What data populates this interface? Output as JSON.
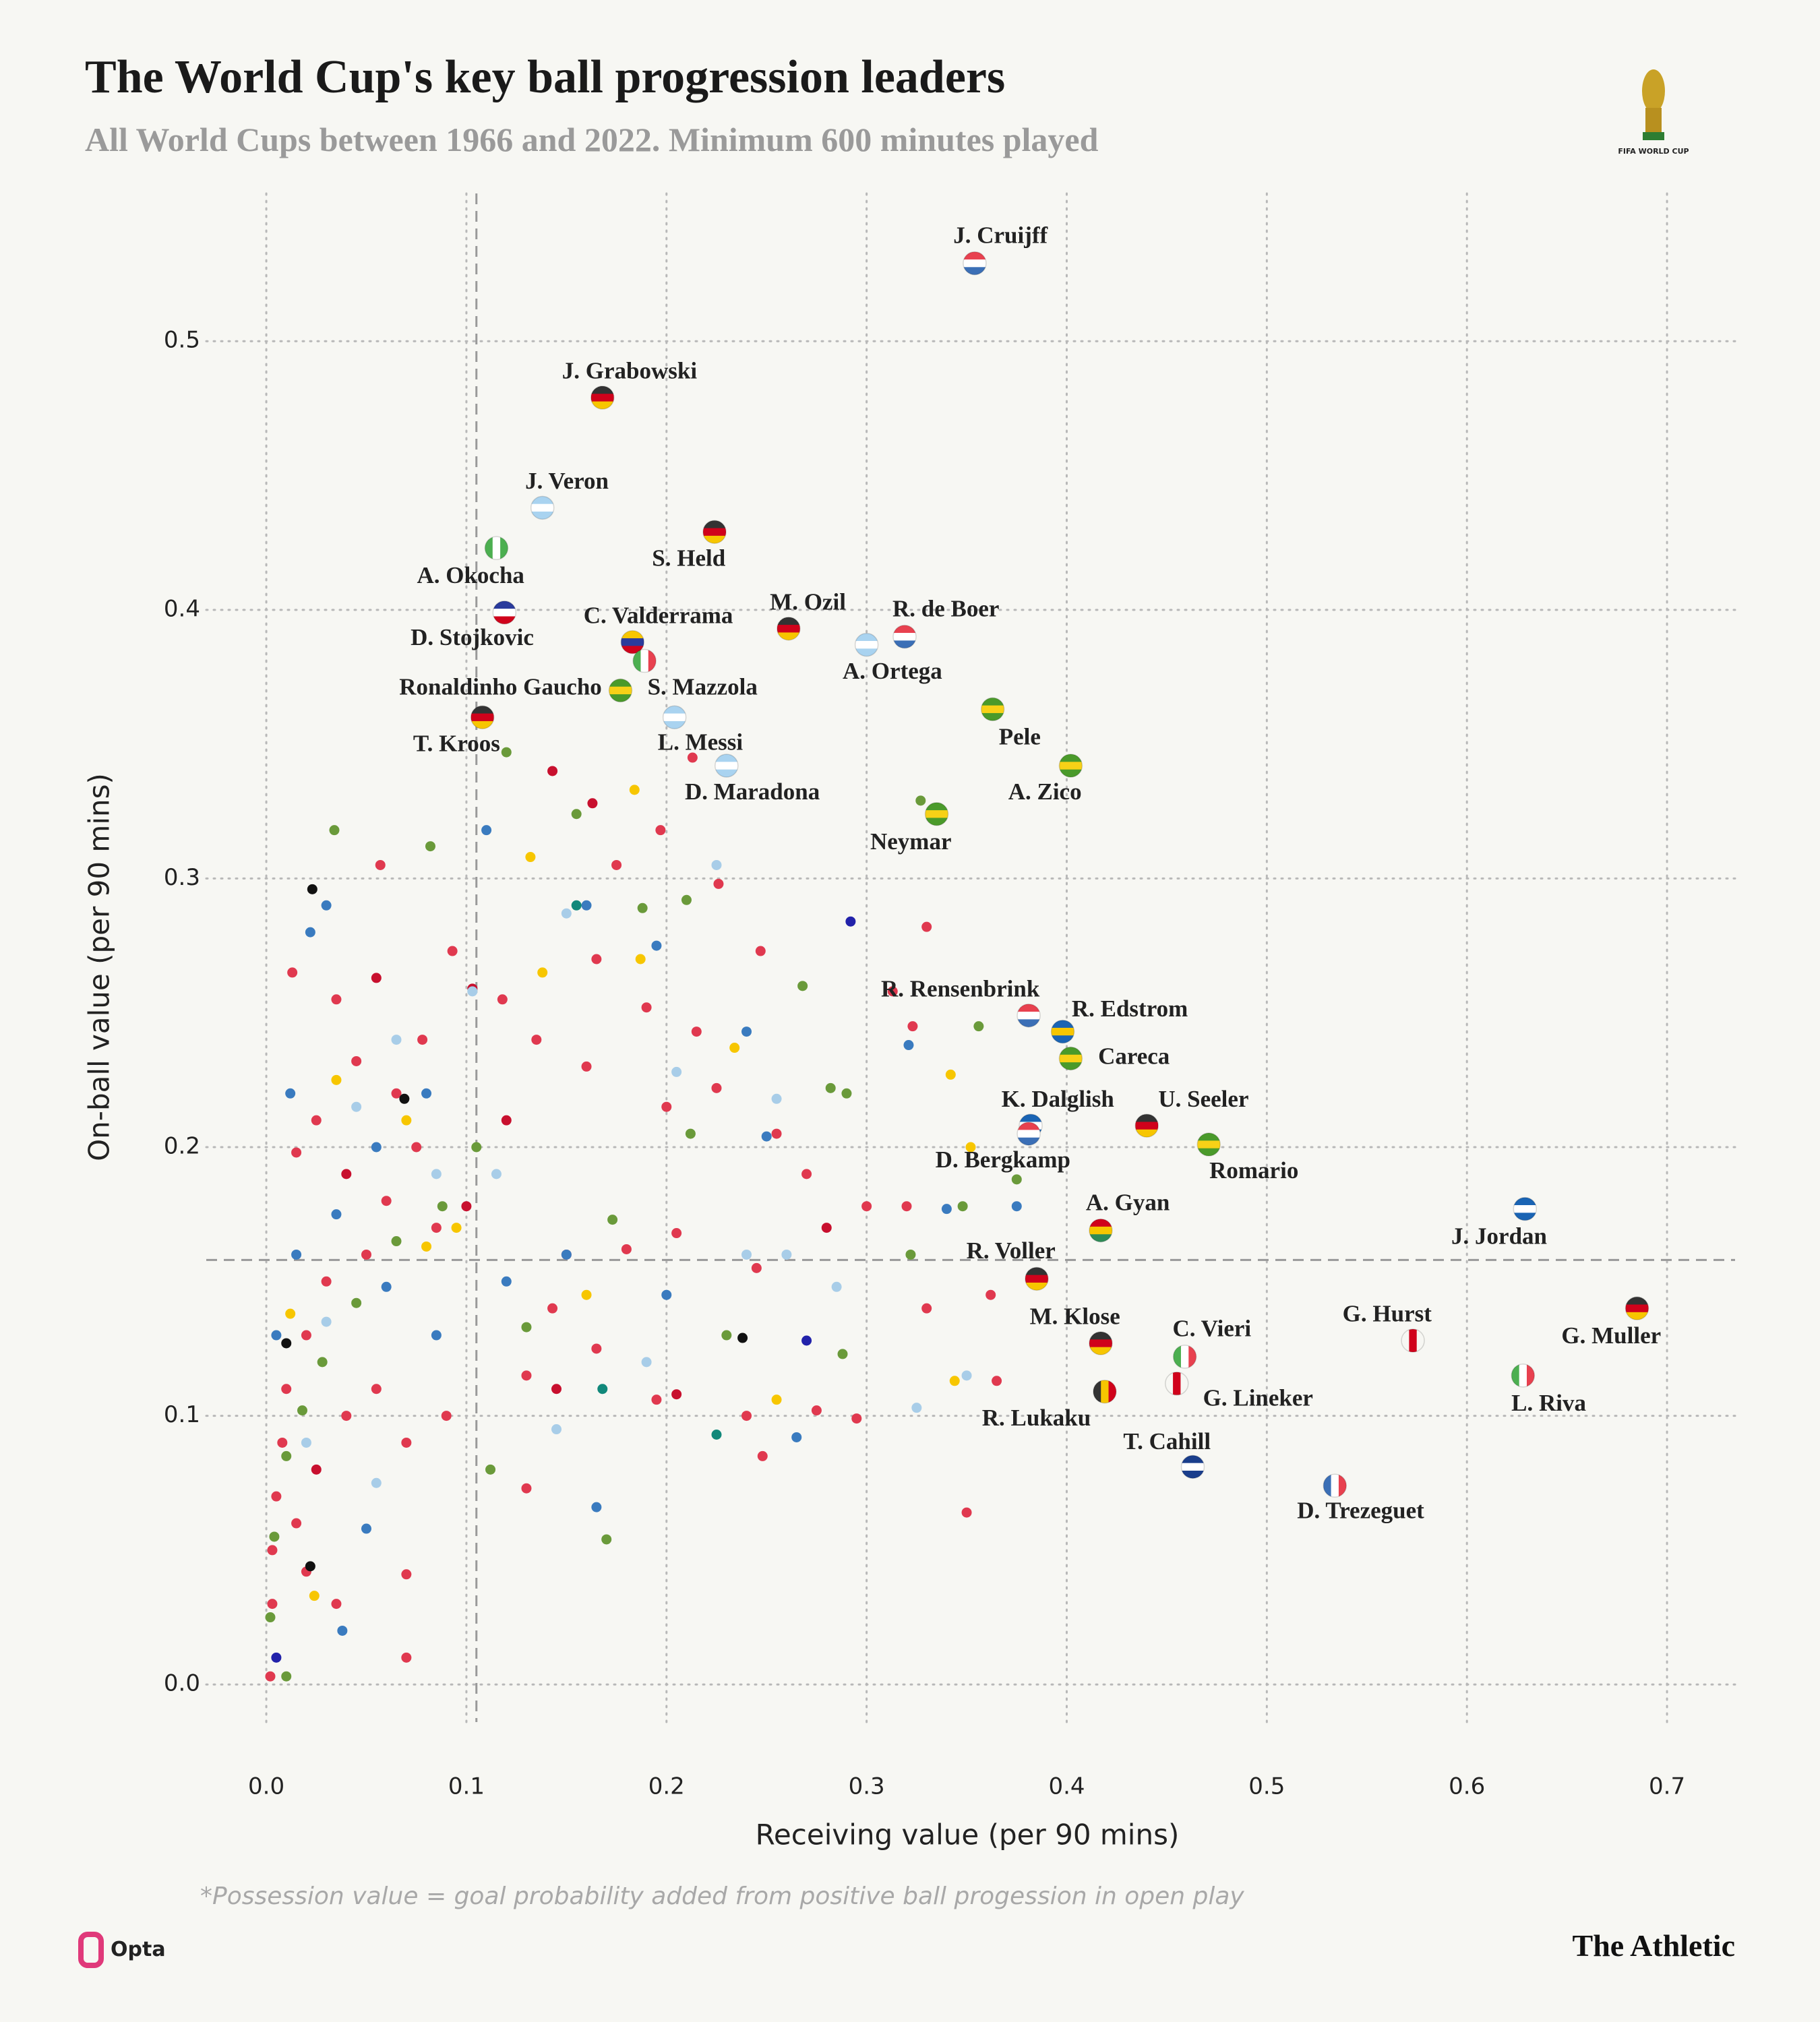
{
  "chart_data": {
    "type": "scatter",
    "title": "The World Cup's key ball progression leaders",
    "subtitle": "All World Cups between 1966 and 2022. Minimum 600 minutes played",
    "x_label": "Receiving value (per 90 mins)",
    "y_label": "On-ball value (per 90 mins)",
    "footnote": "*Possession value = goal probability added from positive ball progession in open play",
    "source": "Opta",
    "publisher": "The Athletic",
    "logo_text": "FIFA WORLD CUP",
    "xlim": [
      -0.03,
      0.734
    ],
    "ylim": [
      -0.014,
      0.555
    ],
    "xticks": [
      {
        "value": 0,
        "label": "0.0"
      },
      0.1,
      0.2,
      0.3,
      0.4,
      0.5,
      0.6,
      0.7
    ],
    "yticks": [
      {
        "value": 0,
        "label": "0.0"
      },
      0.1,
      0.2,
      0.3,
      0.4,
      0.5
    ],
    "grid": true,
    "reference_lines": {
      "x": 0.105,
      "y": 0.158
    },
    "labeled": {
      "names": [
        "J. Cruijff",
        "J. Grabowski",
        "J. Veron",
        "S. Held",
        "A. Okocha",
        "D. Stojkovic",
        "C. Valderrama",
        "S. Mazzola",
        "M. Ozil",
        "R. de Boer",
        "A. Ortega",
        "Ronaldinho Gaucho",
        "L. Messi",
        "T. Kroos",
        "Pele",
        "D. Maradona",
        "A. Zico",
        "Neymar",
        "R. Rensenbrink",
        "R. Edstrom",
        "Careca",
        "K. Dalglish",
        "U. Seeler",
        "Romario",
        "D. Bergkamp",
        "A. Gyan",
        "J. Jordan",
        "R. Voller",
        "G. Hurst",
        "G. Muller",
        "M. Klose",
        "C. Vieri",
        "G. Lineker",
        "L. Riva",
        "R. Lukaku",
        "T. Cahill",
        "D. Trezeguet"
      ],
      "x": [
        0.354,
        0.168,
        0.138,
        0.224,
        0.115,
        0.119,
        0.183,
        0.189,
        0.261,
        0.319,
        0.3,
        0.177,
        0.204,
        0.108,
        0.363,
        0.23,
        0.402,
        0.335,
        0.381,
        0.398,
        0.402,
        0.382,
        0.44,
        0.471,
        0.381,
        0.417,
        0.629,
        0.385,
        0.573,
        0.685,
        0.417,
        0.459,
        0.455,
        0.628,
        0.419,
        0.463,
        0.534
      ],
      "y": [
        0.529,
        0.479,
        0.438,
        0.429,
        0.423,
        0.399,
        0.388,
        0.381,
        0.393,
        0.39,
        0.387,
        0.37,
        0.36,
        0.36,
        0.363,
        0.342,
        0.342,
        0.324,
        0.249,
        0.243,
        0.233,
        0.208,
        0.208,
        0.201,
        0.205,
        0.169,
        0.177,
        0.151,
        0.128,
        0.14,
        0.127,
        0.122,
        0.112,
        0.115,
        0.109,
        0.081,
        0.074
      ],
      "flag_colors": [
        [
          "#e8414f",
          "#ffffff",
          "#3b6fb6"
        ],
        [
          "#333333",
          "#d0021b",
          "#f7c600"
        ],
        [
          "#a9d3f0",
          "#ffffff",
          "#a9d3f0"
        ],
        [
          "#333333",
          "#d0021b",
          "#f7c600"
        ],
        [
          "#4caf50",
          "#ffffff",
          "#4caf50"
        ],
        [
          "#2a3b9c",
          "#ffffff",
          "#d0021b"
        ],
        [
          "#f7c600",
          "#2a3b9c",
          "#d0021b"
        ],
        [
          "#4caf50",
          "#ffffff",
          "#e8414f"
        ],
        [
          "#333333",
          "#d0021b",
          "#f7c600"
        ],
        [
          "#e8414f",
          "#ffffff",
          "#3b6fb6"
        ],
        [
          "#a9d3f0",
          "#ffffff",
          "#a9d3f0"
        ],
        [
          "#4a9a2a",
          "#f7d117",
          "#4a9a2a"
        ],
        [
          "#a9d3f0",
          "#ffffff",
          "#a9d3f0"
        ],
        [
          "#333333",
          "#d0021b",
          "#f7c600"
        ],
        [
          "#4a9a2a",
          "#f7d117",
          "#4a9a2a"
        ],
        [
          "#a9d3f0",
          "#ffffff",
          "#a9d3f0"
        ],
        [
          "#4a9a2a",
          "#f7d117",
          "#4a9a2a"
        ],
        [
          "#4a9a2a",
          "#f7d117",
          "#4a9a2a"
        ],
        [
          "#e8414f",
          "#ffffff",
          "#3b6fb6"
        ],
        [
          "#1a64b4",
          "#f7c600",
          "#1a64b4"
        ],
        [
          "#4a9a2a",
          "#f7d117",
          "#4a9a2a"
        ],
        [
          "#1a64b4",
          "#ffffff",
          "#1a64b4"
        ],
        [
          "#333333",
          "#d0021b",
          "#f7c600"
        ],
        [
          "#4a9a2a",
          "#f7d117",
          "#4a9a2a"
        ],
        [
          "#e8414f",
          "#ffffff",
          "#3b6fb6"
        ],
        [
          "#d0021b",
          "#f7c600",
          "#2e8b57"
        ],
        [
          "#1a64b4",
          "#ffffff",
          "#1a64b4"
        ],
        [
          "#333333",
          "#d0021b",
          "#f7c600"
        ],
        [
          "#f7f7f3",
          "#d0021b",
          "#f7f7f3"
        ],
        [
          "#333333",
          "#d0021b",
          "#f7c600"
        ],
        [
          "#333333",
          "#d0021b",
          "#f7c600"
        ],
        [
          "#4caf50",
          "#ffffff",
          "#e8414f"
        ],
        [
          "#f7f7f3",
          "#d0021b",
          "#f7f7f3"
        ],
        [
          "#4caf50",
          "#ffffff",
          "#e8414f"
        ],
        [
          "#333333",
          "#f7c600",
          "#d0021b"
        ],
        [
          "#1a3e8c",
          "#ffffff",
          "#1a3e8c"
        ],
        [
          "#3b6fb6",
          "#ffffff",
          "#e8414f"
        ]
      ],
      "flag_direction": [
        "h",
        "h",
        "h",
        "h",
        "v",
        "h",
        "h",
        "v",
        "h",
        "h",
        "h",
        "h",
        "h",
        "h",
        "h",
        "h",
        "h",
        "h",
        "h",
        "h",
        "h",
        "h",
        "h",
        "h",
        "h",
        "h",
        "h",
        "h",
        "v",
        "h",
        "h",
        "v",
        "v",
        "v",
        "v",
        "h",
        "v"
      ]
    },
    "background": {
      "x": [
        0.023,
        0.013,
        0.057,
        0.143,
        0.163,
        0.197,
        0.226,
        0.33,
        0.247,
        0.165,
        0.093,
        0.055,
        0.035,
        0.045,
        0.078,
        0.118,
        0.103,
        0.215,
        0.19,
        0.135,
        0.065,
        0.025,
        0.015,
        0.04,
        0.06,
        0.085,
        0.1,
        0.15,
        0.18,
        0.205,
        0.245,
        0.28,
        0.3,
        0.32,
        0.27,
        0.255,
        0.225,
        0.2,
        0.16,
        0.12,
        0.075,
        0.05,
        0.03,
        0.02,
        0.01,
        0.008,
        0.005,
        0.003,
        0.003,
        0.002,
        0.015,
        0.025,
        0.04,
        0.055,
        0.07,
        0.09,
        0.13,
        0.145,
        0.165,
        0.195,
        0.205,
        0.24,
        0.248,
        0.275,
        0.295,
        0.35,
        0.33,
        0.362,
        0.365,
        0.313,
        0.323,
        0.07,
        0.07,
        0.02,
        0.035,
        0.13,
        0.143,
        0.175,
        0.213,
        0.034,
        0.082,
        0.12,
        0.155,
        0.188,
        0.21,
        0.268,
        0.327,
        0.356,
        0.282,
        0.29,
        0.375,
        0.348,
        0.212,
        0.173,
        0.105,
        0.088,
        0.065,
        0.045,
        0.028,
        0.018,
        0.01,
        0.004,
        0.002,
        0.112,
        0.17,
        0.23,
        0.288,
        0.322,
        0.13,
        0.01,
        0.012,
        0.03,
        0.022,
        0.11,
        0.16,
        0.195,
        0.24,
        0.292,
        0.321,
        0.34,
        0.375,
        0.25,
        0.2,
        0.15,
        0.12,
        0.08,
        0.055,
        0.035,
        0.015,
        0.005,
        0.05,
        0.038,
        0.005,
        0.165,
        0.265,
        0.27,
        0.06,
        0.085,
        0.225,
        0.15,
        0.103,
        0.205,
        0.255,
        0.26,
        0.285,
        0.325,
        0.35,
        0.19,
        0.145,
        0.055,
        0.045,
        0.085,
        0.03,
        0.02,
        0.065,
        0.115,
        0.24,
        0.132,
        0.138,
        0.187,
        0.234,
        0.342,
        0.352,
        0.344,
        0.255,
        0.184,
        0.035,
        0.07,
        0.08,
        0.095,
        0.012,
        0.024,
        0.16,
        0.069,
        0.238,
        0.022,
        0.01,
        0.155,
        0.225,
        0.168
      ],
      "y": [
        0.296,
        0.265,
        0.305,
        0.34,
        0.328,
        0.318,
        0.298,
        0.282,
        0.273,
        0.27,
        0.273,
        0.263,
        0.255,
        0.232,
        0.24,
        0.255,
        0.259,
        0.243,
        0.252,
        0.24,
        0.22,
        0.21,
        0.198,
        0.19,
        0.18,
        0.17,
        0.178,
        0.16,
        0.162,
        0.168,
        0.155,
        0.17,
        0.178,
        0.178,
        0.19,
        0.205,
        0.222,
        0.215,
        0.23,
        0.21,
        0.2,
        0.16,
        0.15,
        0.13,
        0.11,
        0.09,
        0.07,
        0.05,
        0.03,
        0.003,
        0.06,
        0.08,
        0.1,
        0.11,
        0.09,
        0.1,
        0.115,
        0.11,
        0.125,
        0.106,
        0.108,
        0.1,
        0.085,
        0.102,
        0.099,
        0.064,
        0.14,
        0.145,
        0.113,
        0.258,
        0.245,
        0.01,
        0.041,
        0.042,
        0.03,
        0.073,
        0.14,
        0.305,
        0.345,
        0.318,
        0.312,
        0.347,
        0.324,
        0.289,
        0.292,
        0.26,
        0.329,
        0.245,
        0.222,
        0.22,
        0.188,
        0.178,
        0.205,
        0.173,
        0.2,
        0.178,
        0.165,
        0.142,
        0.12,
        0.102,
        0.085,
        0.055,
        0.025,
        0.08,
        0.054,
        0.13,
        0.123,
        0.16,
        0.133,
        0.003,
        0.22,
        0.29,
        0.28,
        0.318,
        0.29,
        0.275,
        0.243,
        0.284,
        0.238,
        0.177,
        0.178,
        0.204,
        0.145,
        0.16,
        0.15,
        0.22,
        0.2,
        0.175,
        0.16,
        0.13,
        0.058,
        0.02,
        0.01,
        0.066,
        0.092,
        0.128,
        0.148,
        0.13,
        0.305,
        0.287,
        0.258,
        0.228,
        0.218,
        0.16,
        0.148,
        0.103,
        0.115,
        0.12,
        0.095,
        0.075,
        0.215,
        0.19,
        0.135,
        0.09,
        0.24,
        0.19,
        0.16,
        0.308,
        0.265,
        0.27,
        0.237,
        0.227,
        0.2,
        0.113,
        0.106,
        0.333,
        0.225,
        0.21,
        0.163,
        0.17,
        0.138,
        0.033,
        0.145,
        0.218,
        0.129,
        0.044,
        0.127,
        0.29,
        0.093,
        0.11
      ],
      "colors": [
        "#111111",
        "#e0394f",
        "#e0394f",
        "#c8102e",
        "#c8102e",
        "#e0394f",
        "#e0394f",
        "#e0394f",
        "#e0394f",
        "#e0394f",
        "#e0394f",
        "#c8102e",
        "#e0394f",
        "#e0394f",
        "#e0394f",
        "#e0394f",
        "#c8102e",
        "#e0394f",
        "#e0394f",
        "#e0394f",
        "#e0394f",
        "#e0394f",
        "#e0394f",
        "#c8102e",
        "#e0394f",
        "#e0394f",
        "#c8102e",
        "#e0394f",
        "#e0394f",
        "#e0394f",
        "#e0394f",
        "#c8102e",
        "#e0394f",
        "#e0394f",
        "#e0394f",
        "#e0394f",
        "#e0394f",
        "#e0394f",
        "#e0394f",
        "#c8102e",
        "#e0394f",
        "#e0394f",
        "#e0394f",
        "#e0394f",
        "#e0394f",
        "#e0394f",
        "#e0394f",
        "#e0394f",
        "#e0394f",
        "#e0394f",
        "#e0394f",
        "#c8102e",
        "#e0394f",
        "#e0394f",
        "#e0394f",
        "#e0394f",
        "#e0394f",
        "#c8102e",
        "#e0394f",
        "#e0394f",
        "#c8102e",
        "#e0394f",
        "#e0394f",
        "#e0394f",
        "#e0394f",
        "#e0394f",
        "#e0394f",
        "#e0394f",
        "#e0394f",
        "#e0394f",
        "#e0394f",
        "#e0394f",
        "#e0394f",
        "#e0394f",
        "#e0394f",
        "#e0394f",
        "#e0394f",
        "#e0394f",
        "#e0394f",
        "#6a9a3a",
        "#6a9a3a",
        "#6a9a3a",
        "#6a9a3a",
        "#6a9a3a",
        "#6a9a3a",
        "#6a9a3a",
        "#6a9a3a",
        "#6a9a3a",
        "#6a9a3a",
        "#6a9a3a",
        "#6a9a3a",
        "#6a9a3a",
        "#6a9a3a",
        "#6a9a3a",
        "#6a9a3a",
        "#6a9a3a",
        "#6a9a3a",
        "#6a9a3a",
        "#6a9a3a",
        "#6a9a3a",
        "#6a9a3a",
        "#6a9a3a",
        "#6a9a3a",
        "#6a9a3a",
        "#6a9a3a",
        "#6a9a3a",
        "#6a9a3a",
        "#6a9a3a",
        "#6a9a3a",
        "#6a9a3a",
        "#3a7bbf",
        "#3a7bbf",
        "#3a7bbf",
        "#3a7bbf",
        "#3a7bbf",
        "#3a7bbf",
        "#3a7bbf",
        "#2222aa",
        "#3a7bbf",
        "#3a7bbf",
        "#3a7bbf",
        "#3a7bbf",
        "#3a7bbf",
        "#3a7bbf",
        "#3a7bbf",
        "#3a7bbf",
        "#3a7bbf",
        "#3a7bbf",
        "#3a7bbf",
        "#3a7bbf",
        "#3a7bbf",
        "#3a7bbf",
        "#2222aa",
        "#3a7bbf",
        "#3a7bbf",
        "#2222aa",
        "#3a7bbf",
        "#3a7bbf",
        "#a8cde8",
        "#a8cde8",
        "#a8cde8",
        "#a8cde8",
        "#a8cde8",
        "#a8cde8",
        "#a8cde8",
        "#a8cde8",
        "#a8cde8",
        "#a8cde8",
        "#a8cde8",
        "#a8cde8",
        "#a8cde8",
        "#a8cde8",
        "#a8cde8",
        "#a8cde8",
        "#a8cde8",
        "#a8cde8",
        "#a8cde8",
        "#f7c600",
        "#f7c600",
        "#f7c600",
        "#f7c600",
        "#f7c600",
        "#f7c600",
        "#f7c600",
        "#f7c600",
        "#f7c600",
        "#f7c600",
        "#f7c600",
        "#f7c600",
        "#f7c600",
        "#f7c600",
        "#f7c600",
        "#f7c600",
        "#111111",
        "#111111",
        "#111111",
        "#111111",
        "#11887a",
        "#11887a",
        "#11887a"
      ]
    }
  }
}
